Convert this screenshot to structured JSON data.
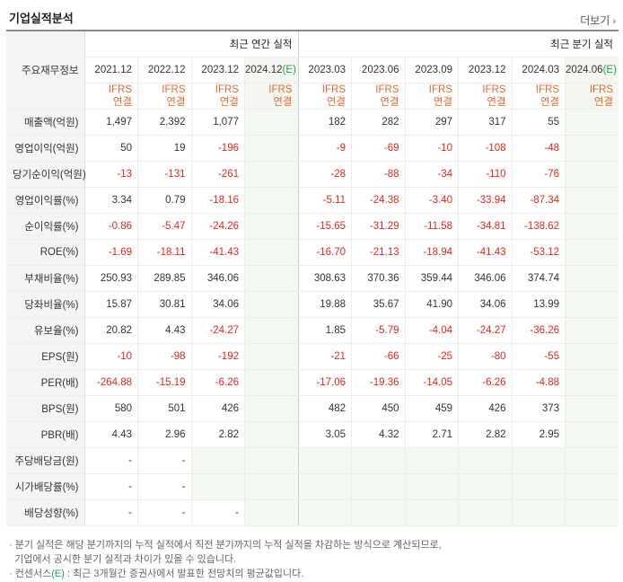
{
  "title": "기업실적분석",
  "more": {
    "label": "더보기",
    "icon": "chevron-right-icon"
  },
  "corner_label": "주요재무정보",
  "groups": {
    "annual": "최근 연간 실적",
    "quarterly": "최근 분기 실적"
  },
  "periods": [
    {
      "label": "2021.12"
    },
    {
      "label": "2022.12"
    },
    {
      "label": "2023.12"
    },
    {
      "label": "2024.12",
      "est": "(E)"
    },
    {
      "label": "2023.03"
    },
    {
      "label": "2023.06"
    },
    {
      "label": "2023.09"
    },
    {
      "label": "2023.12"
    },
    {
      "label": "2024.03"
    },
    {
      "label": "2024.06",
      "est": "(E)"
    }
  ],
  "ifrs": {
    "line1": "IFRS",
    "line2": "연결"
  },
  "rows": [
    {
      "label": "매출액(억원)",
      "values": [
        "1,497",
        "2,392",
        "1,077",
        "",
        "182",
        "282",
        "297",
        "317",
        "55",
        ""
      ]
    },
    {
      "label": "영업이익(억원)",
      "values": [
        "50",
        "19",
        "-196",
        "",
        "-9",
        "-69",
        "-10",
        "-108",
        "-48",
        ""
      ]
    },
    {
      "label": "당기순이익(억원)",
      "values": [
        "-13",
        "-131",
        "-261",
        "",
        "-28",
        "-88",
        "-34",
        "-110",
        "-76",
        ""
      ]
    },
    {
      "label": "영업이익률(%)",
      "values": [
        "3.34",
        "0.79",
        "-18.16",
        "",
        "-5.11",
        "-24.38",
        "-3.40",
        "-33.94",
        "-87.34",
        ""
      ]
    },
    {
      "label": "순이익률(%)",
      "values": [
        "-0.86",
        "-5.47",
        "-24.26",
        "",
        "-15.65",
        "-31.29",
        "-11.58",
        "-34.81",
        "-138.62",
        ""
      ]
    },
    {
      "label": "ROE(%)",
      "values": [
        "-1.69",
        "-18.11",
        "-41.43",
        "",
        "-16.70",
        "-21.13",
        "-18.94",
        "-41.43",
        "-53.12",
        ""
      ]
    },
    {
      "label": "부채비율(%)",
      "values": [
        "250.93",
        "289.85",
        "346.06",
        "",
        "308.63",
        "370.36",
        "359.44",
        "346.06",
        "374.74",
        ""
      ]
    },
    {
      "label": "당좌비율(%)",
      "values": [
        "15.87",
        "30.81",
        "34.06",
        "",
        "19.88",
        "35.67",
        "41.90",
        "34.06",
        "13.99",
        ""
      ]
    },
    {
      "label": "유보율(%)",
      "values": [
        "20.82",
        "4.43",
        "-24.27",
        "",
        "1.85",
        "-5.79",
        "-4.04",
        "-24.27",
        "-36.26",
        ""
      ]
    },
    {
      "label": "EPS(원)",
      "values": [
        "-10",
        "-98",
        "-192",
        "",
        "-21",
        "-66",
        "-25",
        "-80",
        "-55",
        ""
      ]
    },
    {
      "label": "PER(배)",
      "values": [
        "-264.88",
        "-15.19",
        "-6.26",
        "",
        "-17.06",
        "-19.36",
        "-14.05",
        "-6.26",
        "-4.88",
        ""
      ]
    },
    {
      "label": "BPS(원)",
      "values": [
        "580",
        "501",
        "426",
        "",
        "482",
        "450",
        "459",
        "426",
        "373",
        ""
      ]
    },
    {
      "label": "PBR(배)",
      "values": [
        "4.43",
        "2.96",
        "2.82",
        "",
        "3.05",
        "4.32",
        "2.71",
        "2.82",
        "2.95",
        ""
      ]
    },
    {
      "label": "주당배당금(원)",
      "values": [
        "-",
        "-",
        "",
        "",
        "",
        "",
        "",
        "",
        "",
        ""
      ]
    },
    {
      "label": "시가배당률(%)",
      "values": [
        "-",
        "-",
        "",
        "",
        "",
        "",
        "",
        "",
        "",
        ""
      ]
    },
    {
      "label": "배당성향(%)",
      "values": [
        "-",
        "-",
        "-",
        "",
        "",
        "",
        "",
        "",
        "",
        ""
      ]
    }
  ],
  "notes": {
    "line1": "분기 실적은 해당 분기까지의 누적 실적에서 직전 분기까지의 누적 실적을 차감하는 방식으로 계산되므로,",
    "line2": "기업에서 공시한 분기 실적과 차이가 있을 수 있습니다.",
    "line3_pre": "컨센서스",
    "line3_mark": "(E)",
    "line3_post": ": 최근 3개월간 증권사에서 발표한 전망치의 평균값입니다."
  },
  "colors": {
    "negative": "#e0281c",
    "ifrs": "#e36a2e",
    "estimate": "#20a05a",
    "estimate_shade": "#f4f8f2"
  }
}
